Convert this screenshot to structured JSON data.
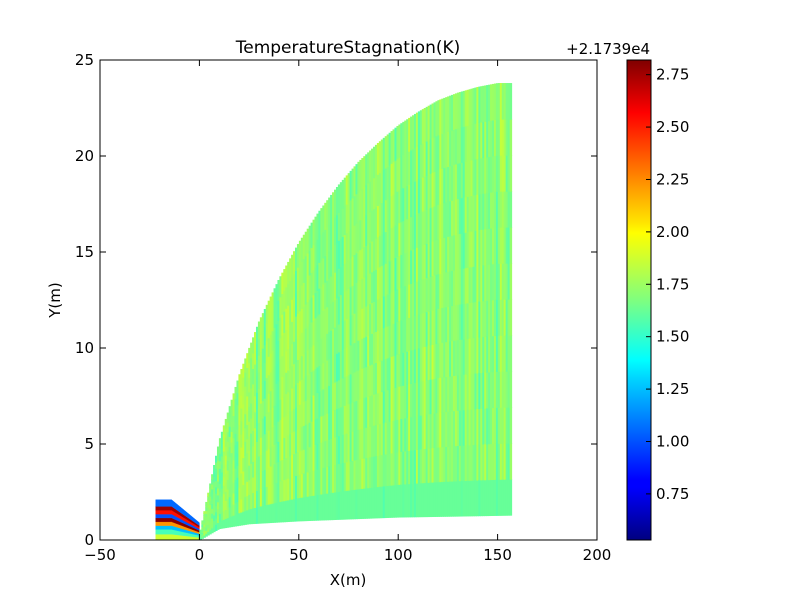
{
  "chart_data": {
    "type": "heatmap",
    "title": "TemperatureStagnation(K)",
    "xlabel": "X(m)",
    "ylabel": "Y(m)",
    "xlim": [
      -50,
      200
    ],
    "ylim": [
      0,
      25
    ],
    "x_ticks": [
      "−50",
      "0",
      "50",
      "100",
      "150",
      "200"
    ],
    "x_tick_values": [
      -50,
      0,
      50,
      100,
      150,
      200
    ],
    "y_ticks": [
      "0",
      "5",
      "10",
      "15",
      "20",
      "25"
    ],
    "y_tick_values": [
      0,
      5,
      10,
      15,
      20,
      25
    ],
    "colorbar": {
      "colormap": "jet",
      "offset_label": "+2.1739e4",
      "vmin": 0.53,
      "vmax": 2.82,
      "ticks": [
        "0.75",
        "1.00",
        "1.25",
        "1.50",
        "1.75",
        "2.00",
        "2.25",
        "2.50",
        "2.75"
      ],
      "tick_values": [
        0.75,
        1.0,
        1.25,
        1.5,
        1.75,
        2.0,
        2.25,
        2.5,
        2.75
      ]
    },
    "regions": [
      {
        "name": "inlet",
        "x_range": [
          -22,
          0
        ],
        "y_top": [
          2.1,
          0.9
        ],
        "bands": [
          {
            "y": [
              0.0,
              0.3
            ],
            "value": 1.85
          },
          {
            "y": [
              0.3,
              0.55
            ],
            "value": 1.55
          },
          {
            "y": [
              0.55,
              0.75
            ],
            "value": 1.25
          },
          {
            "y": [
              0.75,
              0.95
            ],
            "value": 2.2
          },
          {
            "y": [
              0.95,
              1.15
            ],
            "value": 2.8
          },
          {
            "y": [
              1.15,
              1.35
            ],
            "value": 1.0
          },
          {
            "y": [
              1.35,
              1.55
            ],
            "value": 2.5
          },
          {
            "y": [
              1.55,
              1.75
            ],
            "value": 2.75
          },
          {
            "y": [
              1.75,
              2.1
            ],
            "value": 1.05
          }
        ]
      },
      {
        "name": "plume",
        "x_range": [
          0,
          157
        ],
        "upper_boundary": [
          [
            0,
            0.3
          ],
          [
            10,
            5.2
          ],
          [
            20,
            8.6
          ],
          [
            30,
            11.4
          ],
          [
            40,
            13.6
          ],
          [
            50,
            15.5
          ],
          [
            60,
            17.1
          ],
          [
            70,
            18.5
          ],
          [
            80,
            19.7
          ],
          [
            90,
            20.7
          ],
          [
            100,
            21.6
          ],
          [
            110,
            22.3
          ],
          [
            120,
            22.9
          ],
          [
            130,
            23.3
          ],
          [
            140,
            23.6
          ],
          [
            150,
            23.8
          ],
          [
            157,
            23.8
          ]
        ],
        "lower_boundary": [
          [
            0,
            0.0
          ],
          [
            10,
            0.6
          ],
          [
            25,
            0.85
          ],
          [
            50,
            1.0
          ],
          [
            75,
            1.1
          ],
          [
            100,
            1.2
          ],
          [
            130,
            1.25
          ],
          [
            157,
            1.3
          ]
        ],
        "typical_value": 1.7,
        "value_range": [
          1.55,
          1.85
        ]
      }
    ]
  }
}
